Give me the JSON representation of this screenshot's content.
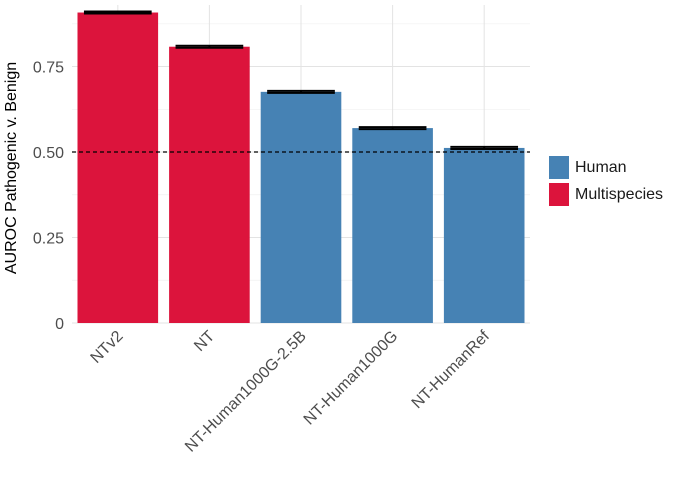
{
  "chart_data": {
    "type": "bar",
    "title": "",
    "xlabel": "",
    "ylabel": "AUROC Pathogenic v. Benign",
    "categories": [
      "NTv2",
      "NT",
      "NT-Human1000G-2.5B",
      "NT-Human1000G",
      "NT-HumanRef"
    ],
    "values": [
      0.908,
      0.808,
      0.676,
      0.57,
      0.512
    ],
    "errors": [
      0.003,
      0.003,
      0.003,
      0.003,
      0.003
    ],
    "groups": [
      "Multispecies",
      "Multispecies",
      "Human",
      "Human",
      "Human"
    ],
    "ylim": [
      0,
      0.93
    ],
    "yticks": [
      0,
      0.25,
      0.5,
      0.75
    ],
    "ytick_labels": [
      "0",
      "0.25",
      "0.50",
      "0.75"
    ],
    "reference_line": 0.5,
    "grid": true,
    "legend_position": "right",
    "legend": [
      {
        "label": "Human",
        "color": "#4682b4"
      },
      {
        "label": "Multispecies",
        "color": "#dc143c"
      }
    ]
  }
}
